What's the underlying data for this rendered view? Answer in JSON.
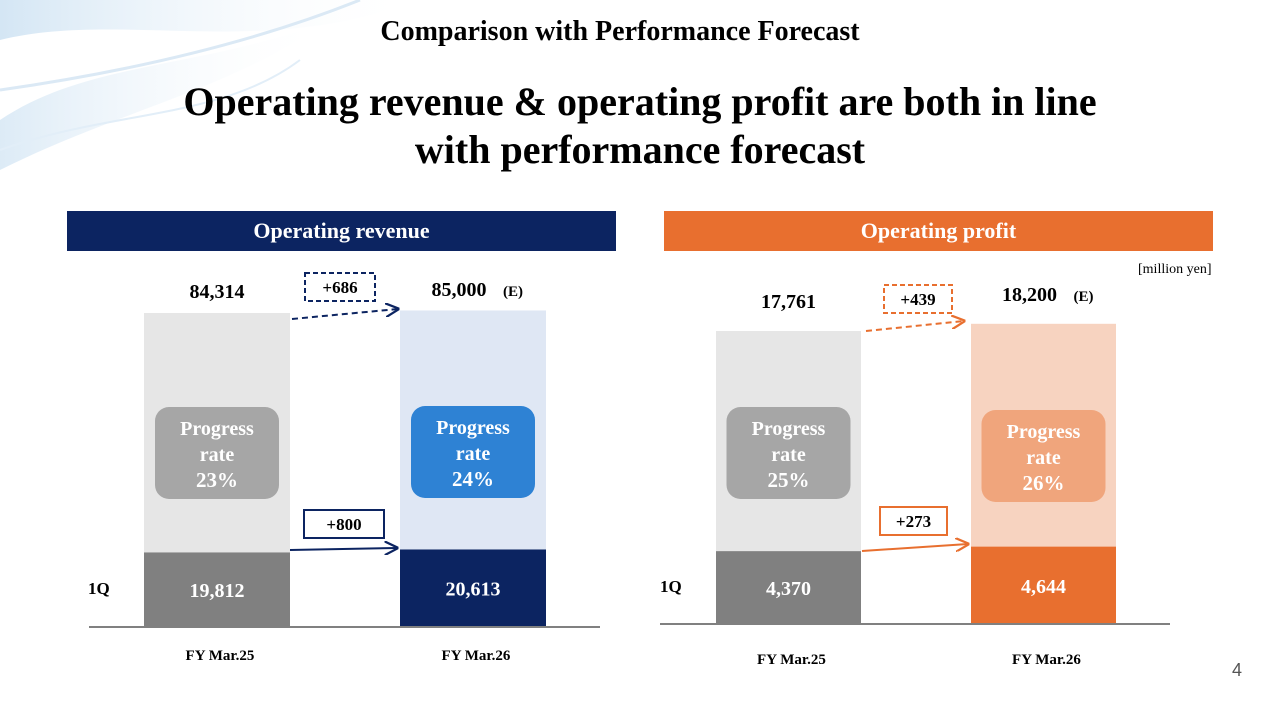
{
  "slide": {
    "title": "Comparison with Performance Forecast",
    "headline_line1": "Operating revenue & operating profit are both in line",
    "headline_line2": "with performance forecast",
    "unit": "[million yen]",
    "page_number": "4"
  },
  "colors": {
    "revenue_accent": "#0c2461",
    "revenue_box": "#2e82d4",
    "revenue_total_bg": "#dfe7f4",
    "profit_accent": "#e86f2f",
    "profit_box": "#f0a57c",
    "profit_total_bg": "#f7d3c0",
    "prior_year_total_bg": "#e6e6e6",
    "prior_year_q1": "#808080",
    "prior_year_box": "#a6a6a6"
  },
  "chart_data": [
    {
      "type": "bar",
      "title": "Operating revenue",
      "categories": [
        "FY Mar.25",
        "FY Mar.26"
      ],
      "series": [
        {
          "name": "1Q",
          "values": [
            19812,
            20613
          ],
          "labels": [
            "19,812",
            "20,613"
          ]
        },
        {
          "name": "",
          "values": [
            84314,
            85000
          ],
          "labels": [
            "84,314",
            "85,000"
          ]
        }
      ],
      "estimate_mark": "(E)",
      "progress": {
        "caption_line1": "Progress",
        "caption_line2": "rate",
        "values": [
          23,
          24
        ],
        "labels": [
          "23%",
          "24%"
        ]
      },
      "diff_total": {
        "value": 686,
        "label": "+686"
      },
      "diff_q1": {
        "value": 800,
        "label": "+800"
      }
    },
    {
      "type": "bar",
      "title": "Operating profit",
      "categories": [
        "FY Mar.25",
        "FY Mar.26"
      ],
      "series": [
        {
          "name": "1Q",
          "values": [
            4370,
            4644
          ],
          "labels": [
            "4,370",
            "4,644"
          ]
        },
        {
          "name": "",
          "values": [
            17761,
            18200
          ],
          "labels": [
            "17,761",
            "18,200"
          ]
        }
      ],
      "estimate_mark": "(E)",
      "progress": {
        "caption_line1": "Progress",
        "caption_line2": "rate",
        "values": [
          25,
          26
        ],
        "labels": [
          "25%",
          "26%"
        ]
      },
      "diff_total": {
        "value": 439,
        "label": "+439"
      },
      "diff_q1": {
        "value": 273,
        "label": "+273"
      }
    }
  ]
}
